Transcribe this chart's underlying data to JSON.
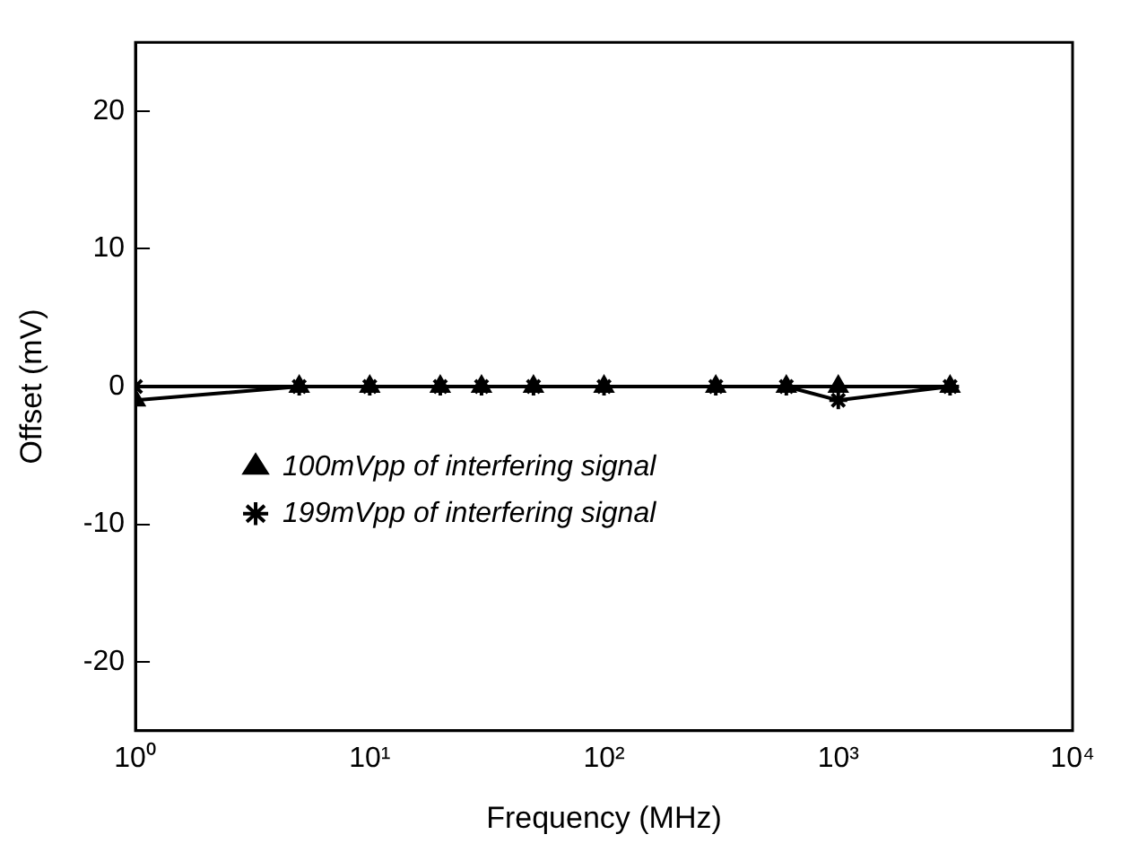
{
  "chart_data": {
    "type": "line",
    "xlabel": "Frequency (MHz)",
    "ylabel": "Offset (mV)",
    "log": "x",
    "x": [
      1,
      5,
      10,
      20,
      30,
      50,
      100,
      300,
      600,
      1000,
      3000
    ],
    "series": [
      {
        "name": "100mVpp of interfering signal",
        "color": "#000000",
        "marker": "triangle",
        "values": [
          -1,
          0,
          0,
          0,
          0,
          0,
          0,
          0,
          0,
          0,
          0
        ]
      },
      {
        "name": "199mVpp of interfering signal",
        "color": "#000000",
        "marker": "cross",
        "values": [
          0,
          0,
          0,
          0,
          0,
          0,
          0,
          0,
          0,
          -1,
          0
        ]
      }
    ],
    "xlim": [
      1,
      10000
    ],
    "xticks": [
      {
        "value": 1,
        "label": "10⁰"
      },
      {
        "value": 10,
        "label": "10¹"
      },
      {
        "value": 100,
        "label": "10²"
      },
      {
        "value": 1000,
        "label": "10³"
      },
      {
        "value": 10000,
        "label": "10⁴"
      }
    ],
    "ylim": [
      -25,
      25
    ],
    "yticks": [
      -20,
      -10,
      0,
      10,
      20
    ],
    "grid": false,
    "legend": "bottom left",
    "line_style": "solid"
  }
}
